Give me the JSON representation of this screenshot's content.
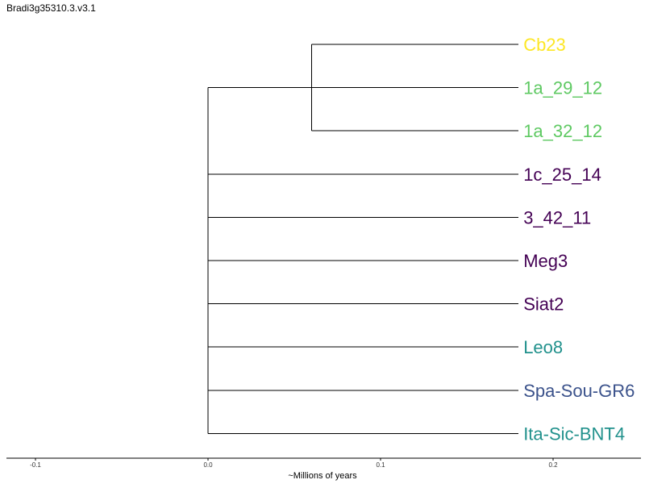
{
  "chart_data": {
    "type": "dendrogram",
    "title": "Bradi3g35310.3.v3.1",
    "xlabel": "~Millions of years",
    "xlim": [
      -0.117,
      0.25
    ],
    "x_ticks": [
      "-0.1",
      "0.0",
      "0.1",
      "0.2"
    ],
    "x_tick_values": [
      -0.1,
      0.0,
      0.1,
      0.2
    ],
    "grid": false,
    "colors": {
      "yellow": "#FDE725",
      "green": "#5EC962",
      "purple": "#440154",
      "teal": "#21918C",
      "blue": "#3B528B",
      "branch": "#000000"
    },
    "tips": [
      {
        "label": "Cb23",
        "x": 0.18,
        "color": "#FDE725"
      },
      {
        "label": "1a_29_12",
        "x": 0.18,
        "color": "#5EC962"
      },
      {
        "label": "1a_32_12",
        "x": 0.18,
        "color": "#5EC962"
      },
      {
        "label": "1c_25_14",
        "x": 0.18,
        "color": "#440154"
      },
      {
        "label": "3_42_11",
        "x": 0.18,
        "color": "#440154"
      },
      {
        "label": "Meg3",
        "x": 0.18,
        "color": "#440154"
      },
      {
        "label": "Siat2",
        "x": 0.18,
        "color": "#440154"
      },
      {
        "label": "Leo8",
        "x": 0.18,
        "color": "#21918C"
      },
      {
        "label": "Spa-Sou-GR6",
        "x": 0.18,
        "color": "#3B528B"
      },
      {
        "label": "Ita-Sic-BNT4",
        "x": 0.18,
        "color": "#21918C"
      }
    ],
    "internal_nodes": [
      {
        "name": "root",
        "x": 0.0,
        "children": [
          "clade_A",
          "1c_25_14",
          "3_42_11",
          "Meg3",
          "Siat2",
          "Leo8",
          "Spa-Sou-GR6",
          "Ita-Sic-BNT4"
        ]
      },
      {
        "name": "clade_A",
        "x": 0.06,
        "children": [
          "Cb23",
          "1a_29_12",
          "1a_32_12"
        ]
      }
    ]
  }
}
